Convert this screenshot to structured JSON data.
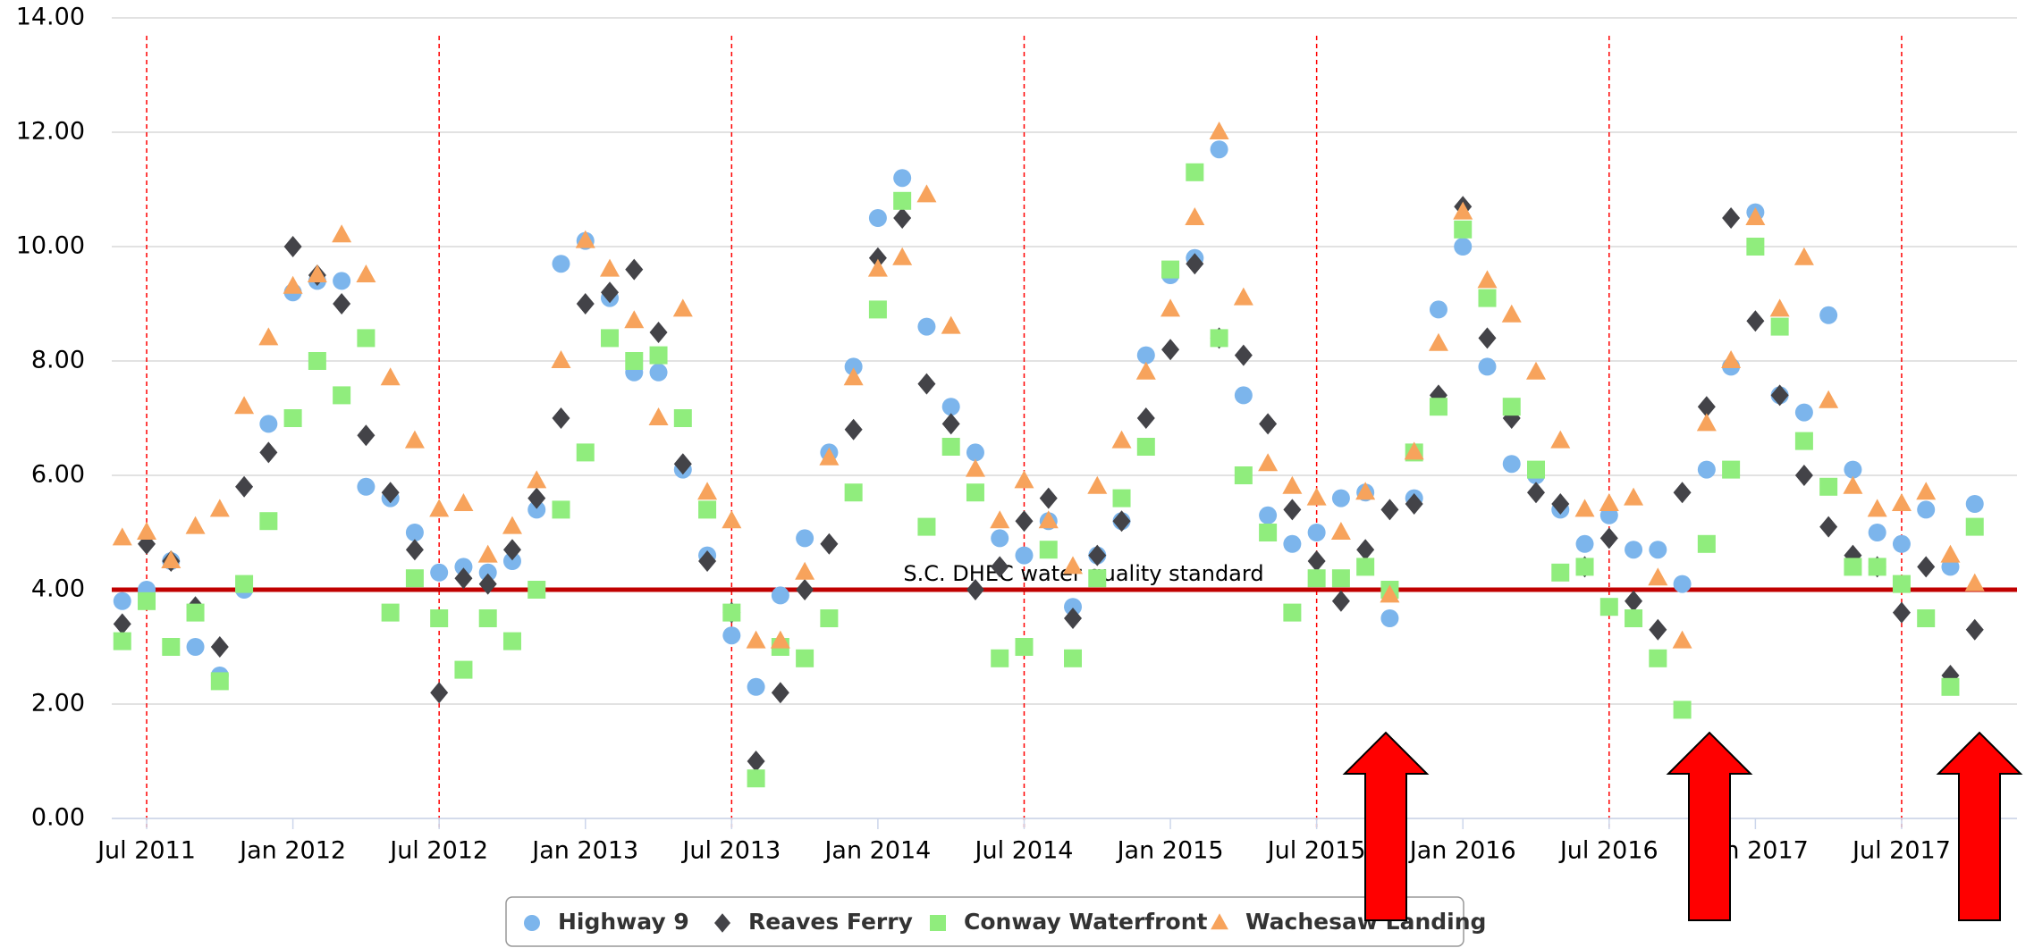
{
  "chart_data": {
    "type": "scatter",
    "x": [
      "2011-06",
      "2011-07",
      "2011-08",
      "2011-09",
      "2011-10",
      "2011-11",
      "2011-12",
      "2012-01",
      "2012-02",
      "2012-03",
      "2012-04",
      "2012-05",
      "2012-06",
      "2012-07",
      "2012-08",
      "2012-09",
      "2012-10",
      "2012-11",
      "2012-12",
      "2013-01",
      "2013-02",
      "2013-03",
      "2013-04",
      "2013-05",
      "2013-06",
      "2013-07",
      "2013-08",
      "2013-09",
      "2013-10",
      "2013-11",
      "2013-12",
      "2014-01",
      "2014-02",
      "2014-03",
      "2014-04",
      "2014-05",
      "2014-06",
      "2014-07",
      "2014-08",
      "2014-09",
      "2014-10",
      "2014-11",
      "2014-12",
      "2015-01",
      "2015-02",
      "2015-03",
      "2015-04",
      "2015-05",
      "2015-06",
      "2015-07",
      "2015-08",
      "2015-09",
      "2015-10",
      "2015-11",
      "2015-12",
      "2016-01",
      "2016-02",
      "2016-03",
      "2016-04",
      "2016-05",
      "2016-06",
      "2016-07",
      "2016-08",
      "2016-09",
      "2016-10",
      "2016-11",
      "2016-12",
      "2017-01",
      "2017-02",
      "2017-03",
      "2017-04",
      "2017-05",
      "2017-06",
      "2017-07",
      "2017-08",
      "2017-09",
      "2017-10"
    ],
    "series": [
      {
        "name": "Highway 9",
        "color": "#7cb5ec",
        "marker": "circle",
        "values": [
          3.8,
          4.0,
          4.5,
          3.0,
          2.5,
          4.0,
          6.9,
          9.2,
          9.4,
          9.4,
          5.8,
          5.6,
          5.0,
          4.3,
          4.4,
          4.3,
          4.5,
          5.4,
          9.7,
          10.1,
          9.1,
          7.8,
          7.8,
          6.1,
          4.6,
          3.2,
          2.3,
          3.9,
          4.9,
          6.4,
          7.9,
          10.5,
          11.2,
          8.6,
          7.2,
          6.4,
          4.9,
          4.6,
          5.2,
          3.7,
          4.6,
          5.2,
          8.1,
          9.5,
          9.8,
          11.7,
          7.4,
          5.3,
          4.8,
          5.0,
          5.6,
          5.7,
          3.5,
          5.6,
          8.9,
          10.0,
          7.9,
          6.2,
          6.0,
          5.4,
          4.8,
          5.3,
          4.7,
          4.7,
          4.1,
          6.1,
          7.9,
          10.6,
          7.4,
          7.1,
          8.8,
          6.1,
          5.0,
          4.8,
          5.4,
          4.4,
          5.5
        ]
      },
      {
        "name": "Reaves Ferry",
        "color": "#434348",
        "marker": "diamond",
        "values": [
          3.4,
          4.8,
          4.5,
          3.7,
          3.0,
          5.8,
          6.4,
          10.0,
          9.5,
          9.0,
          6.7,
          5.7,
          4.7,
          2.2,
          4.2,
          4.1,
          4.7,
          5.6,
          7.0,
          9.0,
          9.2,
          9.6,
          8.5,
          6.2,
          4.5,
          3.6,
          1.0,
          2.2,
          4.0,
          4.8,
          6.8,
          9.8,
          10.5,
          7.6,
          6.9,
          4.0,
          4.4,
          5.2,
          5.6,
          3.5,
          4.6,
          5.2,
          7.0,
          8.2,
          9.7,
          8.4,
          8.1,
          6.9,
          5.4,
          4.5,
          3.8,
          4.7,
          5.4,
          5.5,
          7.4,
          10.7,
          8.4,
          7.0,
          5.7,
          5.5,
          4.4,
          4.9,
          3.8,
          3.3,
          5.7,
          7.2,
          10.5,
          8.7,
          7.4,
          6.0,
          5.1,
          4.6,
          4.4,
          3.6,
          4.4,
          2.5,
          3.3
        ]
      },
      {
        "name": "Conway Waterfront",
        "color": "#90ed7d",
        "marker": "square",
        "values": [
          3.1,
          3.8,
          3.0,
          3.6,
          2.4,
          4.1,
          5.2,
          7.0,
          8.0,
          7.4,
          8.4,
          3.6,
          4.2,
          3.5,
          2.6,
          3.5,
          3.1,
          4.0,
          5.4,
          6.4,
          8.4,
          8.0,
          8.1,
          7.0,
          5.4,
          3.6,
          0.7,
          3.0,
          2.8,
          3.5,
          5.7,
          8.9,
          10.8,
          5.1,
          6.5,
          5.7,
          2.8,
          3.0,
          4.7,
          2.8,
          4.2,
          5.6,
          6.5,
          9.6,
          11.3,
          8.4,
          6.0,
          5.0,
          3.6,
          4.2,
          4.2,
          4.4,
          4.0,
          6.4,
          7.2,
          10.3,
          9.1,
          7.2,
          6.1,
          4.3,
          4.4,
          3.7,
          3.5,
          2.8,
          1.9,
          4.8,
          6.1,
          10.0,
          8.6,
          6.6,
          5.8,
          4.4,
          4.4,
          4.1,
          3.5,
          2.3,
          5.1
        ]
      },
      {
        "name": "Wachesaw Landing",
        "color": "#f7a35c",
        "marker": "triangle",
        "values": [
          4.9,
          5.0,
          4.5,
          5.1,
          5.4,
          7.2,
          8.4,
          9.3,
          9.5,
          10.2,
          9.5,
          7.7,
          6.6,
          5.4,
          5.5,
          4.6,
          5.1,
          5.9,
          8.0,
          10.1,
          9.6,
          8.7,
          7.0,
          8.9,
          5.7,
          5.2,
          3.1,
          3.1,
          4.3,
          6.3,
          7.7,
          9.6,
          9.8,
          10.9,
          8.6,
          6.1,
          5.2,
          5.9,
          5.2,
          4.4,
          5.8,
          6.6,
          7.8,
          8.9,
          10.5,
          12.0,
          9.1,
          6.2,
          5.8,
          5.6,
          5.0,
          5.7,
          3.9,
          6.4,
          8.3,
          10.6,
          9.4,
          8.8,
          7.8,
          6.6,
          5.4,
          5.5,
          5.6,
          4.2,
          3.1,
          6.9,
          8.0,
          10.5,
          8.9,
          9.8,
          7.3,
          5.8,
          5.4,
          5.5,
          5.7,
          4.6,
          4.1
        ]
      }
    ],
    "xlim": [
      "2011-05",
      "2017-11"
    ],
    "xticks": [
      {
        "value": "2011-07",
        "label": "Jul 2011"
      },
      {
        "value": "2012-01",
        "label": "Jan 2012"
      },
      {
        "value": "2012-07",
        "label": "Jul 2012"
      },
      {
        "value": "2013-01",
        "label": "Jan 2013"
      },
      {
        "value": "2013-07",
        "label": "Jul 2013"
      },
      {
        "value": "2014-01",
        "label": "Jan 2014"
      },
      {
        "value": "2014-07",
        "label": "Jul 2014"
      },
      {
        "value": "2015-01",
        "label": "Jan 2015"
      },
      {
        "value": "2015-07",
        "label": "Jul 2015"
      },
      {
        "value": "2016-01",
        "label": "Jan 2016"
      },
      {
        "value": "2016-07",
        "label": "Jul 2016"
      },
      {
        "value": "2017-01",
        "label": "Jan 2017"
      },
      {
        "value": "2017-07",
        "label": "Jul 2017"
      }
    ],
    "ylim": [
      0,
      14
    ],
    "yticks": [
      {
        "value": 0,
        "label": "0.00"
      },
      {
        "value": 2,
        "label": "2.00"
      },
      {
        "value": 4,
        "label": "4.00"
      },
      {
        "value": 6,
        "label": "6.00"
      },
      {
        "value": 8,
        "label": "8.00"
      },
      {
        "value": 10,
        "label": "10.00"
      },
      {
        "value": 12,
        "label": "12.00"
      },
      {
        "value": 14,
        "label": "14.00"
      }
    ],
    "grid": true,
    "threshold": {
      "value": 4,
      "label": "S.C. DHEC water quality standard",
      "color": "#c00000"
    },
    "legend": "bottom"
  }
}
